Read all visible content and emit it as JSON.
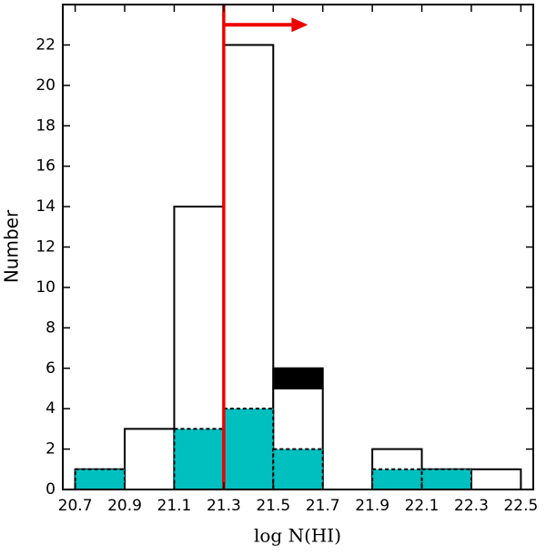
{
  "chart_data": {
    "type": "histogram",
    "xlabel": "log N(HI)",
    "ylabel": "Number",
    "bins": [
      20.7,
      20.9,
      21.1,
      21.3,
      21.5,
      21.7,
      21.9,
      22.1,
      22.3,
      22.5
    ],
    "series": [
      {
        "color": "#ffffff",
        "edgecolor": "#000000",
        "style": "solid",
        "stacked": false,
        "values": [
          1,
          3,
          14,
          22,
          5,
          0,
          2,
          1,
          1
        ]
      },
      {
        "color": "#000000",
        "edgecolor": "#000000",
        "style": "solid",
        "stacked": true,
        "values": [
          0,
          0,
          0,
          0,
          1,
          0,
          0,
          0,
          0
        ]
      },
      {
        "color": "#00bfbf",
        "edgecolor": "#000000",
        "style": "dashed",
        "stacked": false,
        "values": [
          1,
          0,
          3,
          4,
          2,
          0,
          1,
          1,
          0
        ]
      }
    ],
    "threshold": {
      "x": 21.3,
      "color": "#ee0000"
    },
    "arrow": {
      "x": [
        21.3,
        21.64
      ],
      "y": 23,
      "color": "#ee0000"
    },
    "xlim": [
      20.65,
      22.55
    ],
    "ylim": [
      0,
      24
    ],
    "xticks": [
      20.7,
      20.9,
      21.1,
      21.3,
      21.5,
      21.7,
      21.9,
      22.1,
      22.3,
      22.5
    ],
    "yticks": [
      0,
      2,
      4,
      6,
      8,
      10,
      12,
      14,
      16,
      18,
      20,
      22
    ]
  }
}
